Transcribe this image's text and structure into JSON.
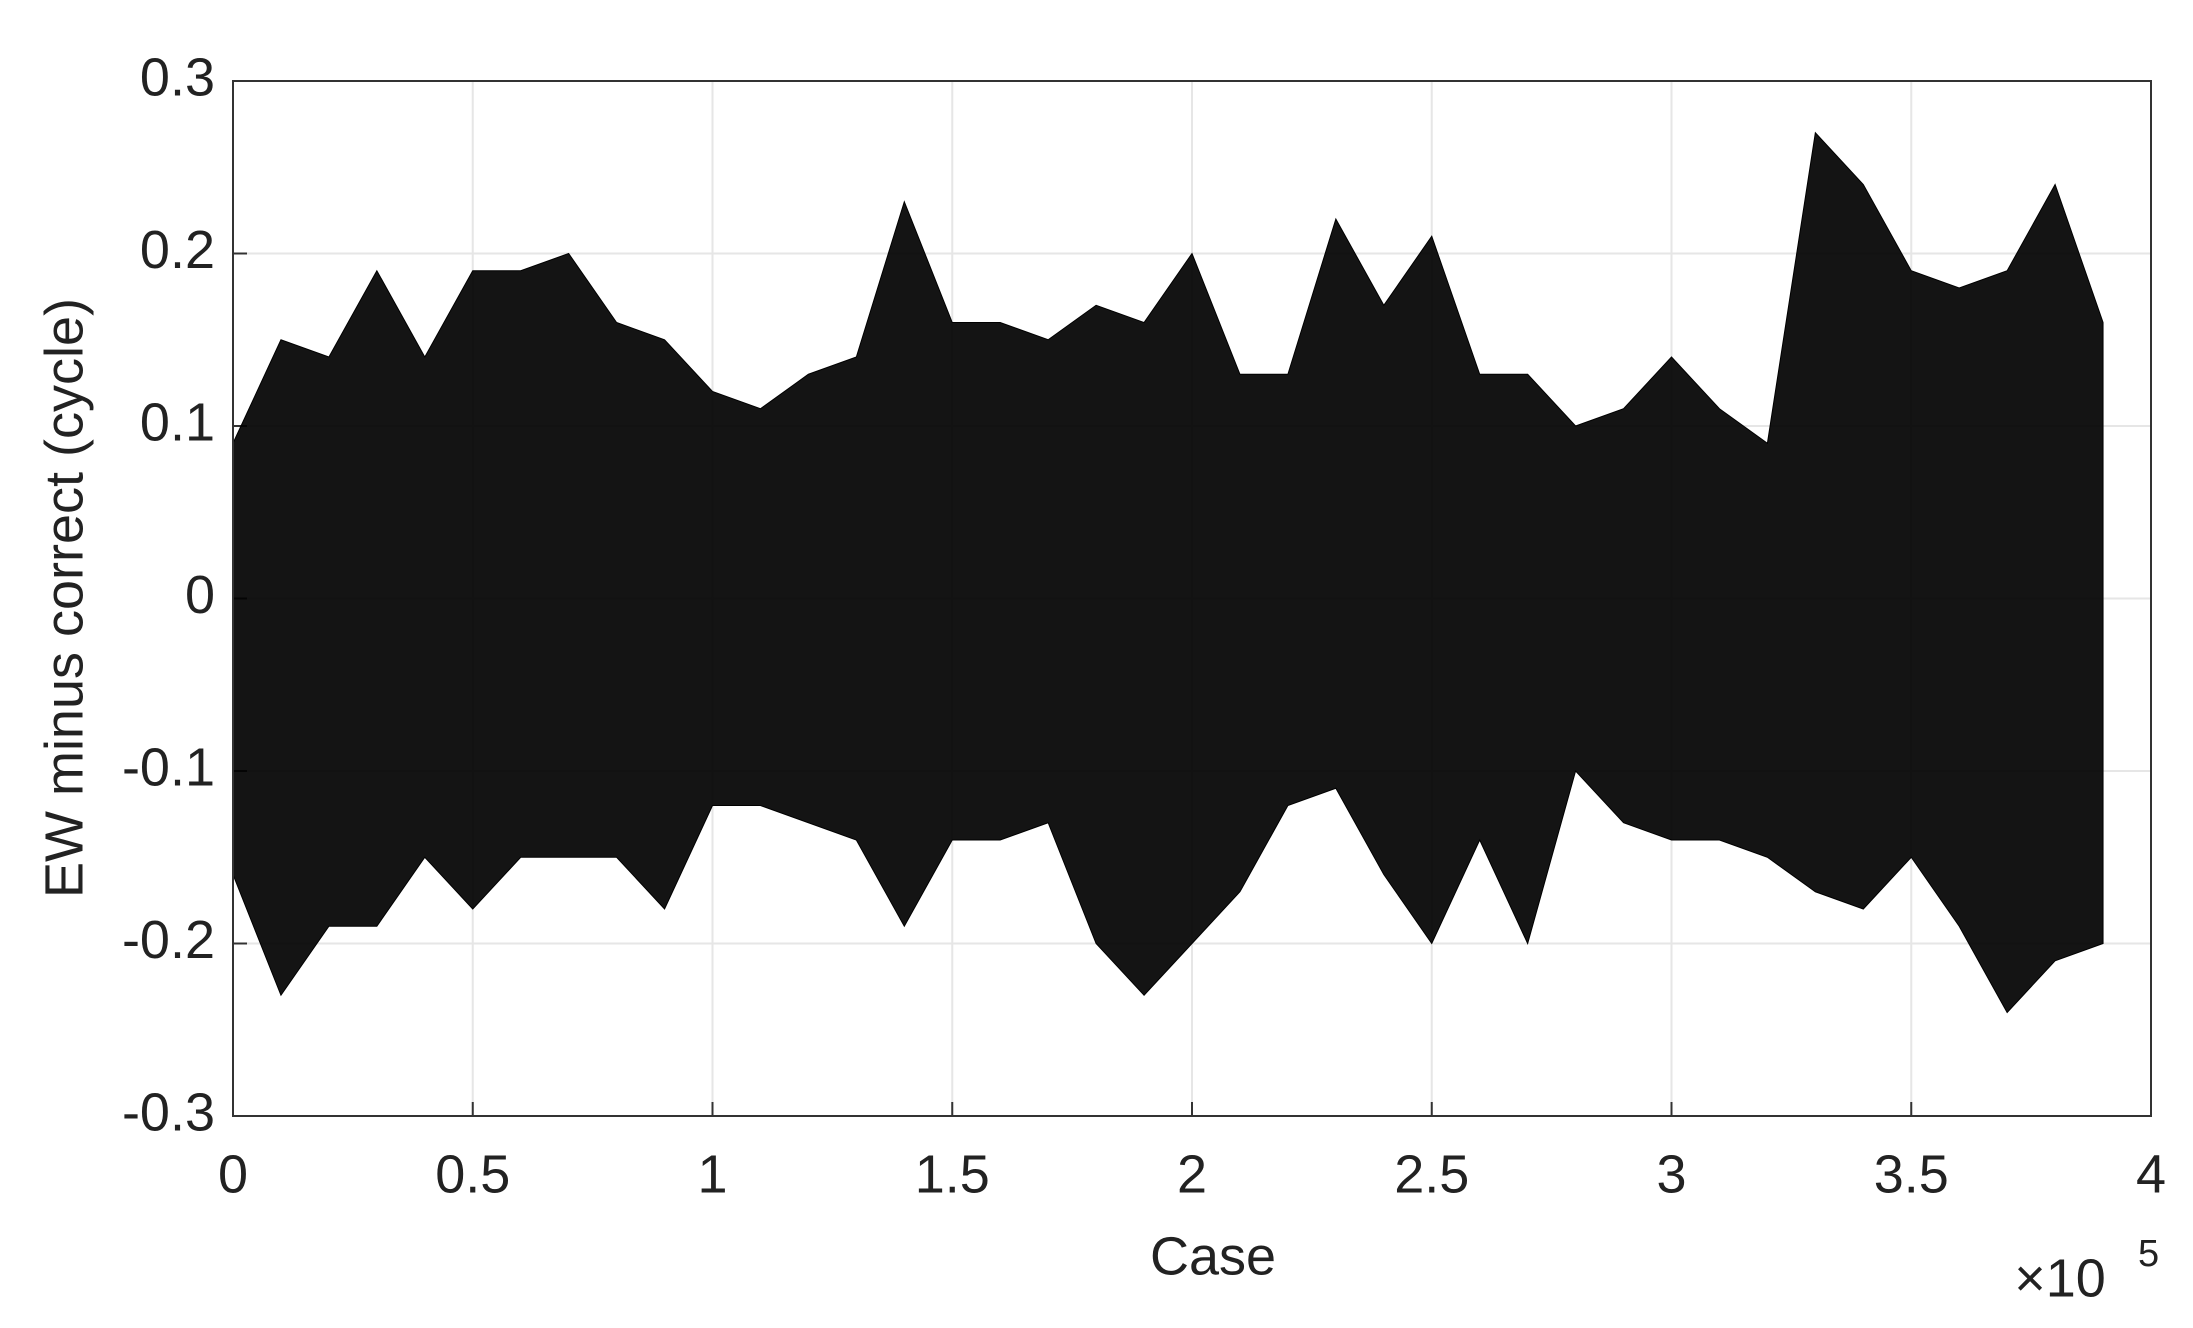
{
  "chart_data": {
    "type": "range-area",
    "xlabel": "Case",
    "ylabel": "EW minus correct (cycle)",
    "x_multiplier": "×10",
    "x_multiplier_exponent": "5",
    "color": "#000000",
    "grid": true,
    "xlim": [
      0,
      4
    ],
    "xticks": [
      0,
      0.5,
      1,
      1.5,
      2,
      2.5,
      3,
      3.5,
      4
    ],
    "ylim": [
      -0.3,
      0.3
    ],
    "yticks": [
      -0.3,
      -0.2,
      -0.1,
      0,
      0.1,
      0.2,
      0.3
    ],
    "x": [
      0,
      0.1,
      0.2,
      0.3,
      0.4,
      0.5,
      0.6,
      0.7,
      0.8,
      0.9,
      1.0,
      1.1,
      1.2,
      1.3,
      1.4,
      1.5,
      1.6,
      1.7,
      1.8,
      1.9,
      2.0,
      2.1,
      2.2,
      2.3,
      2.4,
      2.5,
      2.6,
      2.7,
      2.8,
      2.9,
      3.0,
      3.1,
      3.2,
      3.3,
      3.4,
      3.5,
      3.6,
      3.7,
      3.8,
      3.9
    ],
    "upper": [
      0.09,
      0.15,
      0.14,
      0.19,
      0.14,
      0.19,
      0.19,
      0.2,
      0.16,
      0.15,
      0.12,
      0.11,
      0.13,
      0.14,
      0.23,
      0.16,
      0.16,
      0.15,
      0.17,
      0.16,
      0.2,
      0.13,
      0.13,
      0.22,
      0.17,
      0.21,
      0.13,
      0.13,
      0.1,
      0.11,
      0.14,
      0.11,
      0.09,
      0.27,
      0.24,
      0.19,
      0.18,
      0.19,
      0.24,
      0.16
    ],
    "lower": [
      -0.16,
      -0.23,
      -0.19,
      -0.19,
      -0.15,
      -0.18,
      -0.15,
      -0.15,
      -0.15,
      -0.18,
      -0.12,
      -0.12,
      -0.13,
      -0.14,
      -0.19,
      -0.14,
      -0.14,
      -0.13,
      -0.2,
      -0.23,
      -0.2,
      -0.17,
      -0.12,
      -0.11,
      -0.16,
      -0.2,
      -0.14,
      -0.2,
      -0.1,
      -0.13,
      -0.14,
      -0.14,
      -0.15,
      -0.17,
      -0.18,
      -0.15,
      -0.19,
      -0.24,
      -0.21,
      -0.2
    ]
  }
}
